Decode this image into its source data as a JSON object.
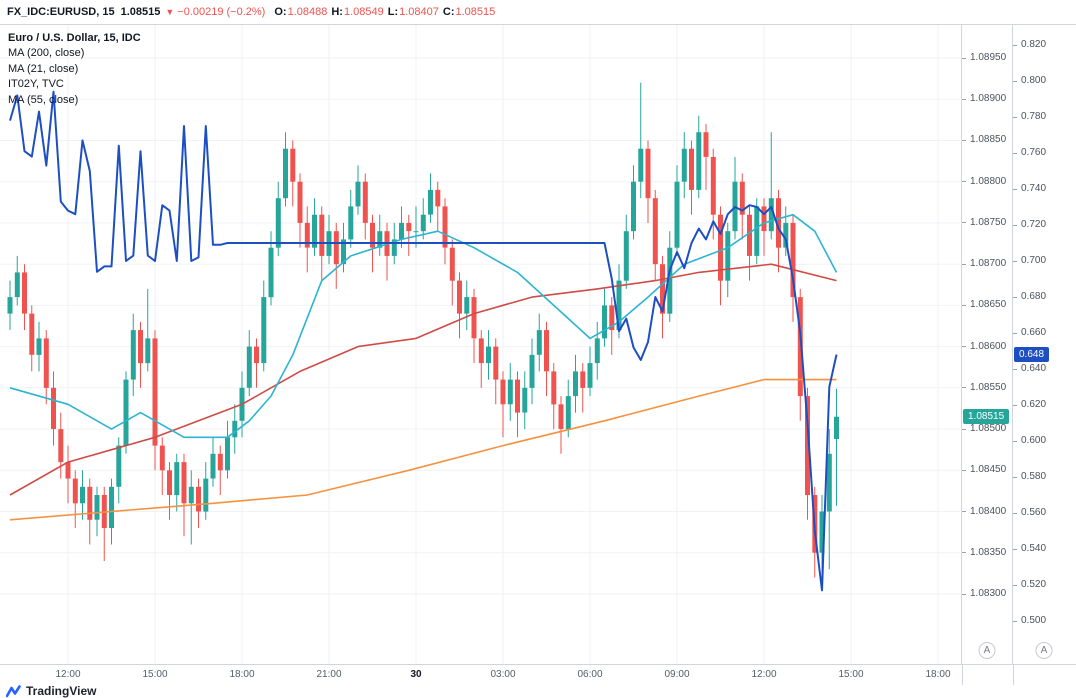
{
  "header": {
    "symbol": "FX_IDC:EURUSD, 15",
    "last": "1.08515",
    "direction": "▼",
    "change": "−0.00219 (−0.2%)",
    "o_label": "O:",
    "o": "1.08488",
    "h_label": "H:",
    "h": "1.08549",
    "l_label": "L:",
    "l": "1.08407",
    "c_label": "C:",
    "c": "1.08515"
  },
  "legend": {
    "main": "Euro / U.S. Dollar, 15, IDC",
    "ma200": "MA (200, close)",
    "ma21": "MA (21, close)",
    "it02y": "IT02Y, TVC",
    "ma55": "MA (55, close)"
  },
  "price_axis": {
    "labels": [
      "1.08950",
      "1.08900",
      "1.08850",
      "1.08800",
      "1.08750",
      "1.08700",
      "1.08650",
      "1.08600",
      "1.08550",
      "1.08500",
      "1.08450",
      "1.08400",
      "1.08350",
      "1.08300"
    ],
    "badge": "1.08515",
    "auto_label": "A"
  },
  "yield_axis": {
    "labels": [
      "0.820",
      "0.800",
      "0.780",
      "0.760",
      "0.740",
      "0.720",
      "0.700",
      "0.680",
      "0.660",
      "0.640",
      "0.620",
      "0.600",
      "0.580",
      "0.560",
      "0.540",
      "0.520",
      "0.500"
    ],
    "badge": "0.648",
    "auto_label": "A"
  },
  "time_axis": {
    "labels": [
      {
        "text": "12:00",
        "idx": 8,
        "bold": false
      },
      {
        "text": "15:00",
        "idx": 20,
        "bold": false
      },
      {
        "text": "18:00",
        "idx": 32,
        "bold": false
      },
      {
        "text": "21:00",
        "idx": 44,
        "bold": false
      },
      {
        "text": "30",
        "idx": 56,
        "bold": true
      },
      {
        "text": "03:00",
        "idx": 68,
        "bold": false
      },
      {
        "text": "06:00",
        "idx": 80,
        "bold": false
      },
      {
        "text": "09:00",
        "idx": 92,
        "bold": false
      },
      {
        "text": "12:00",
        "idx": 104,
        "bold": false
      },
      {
        "text": "15:00",
        "idx": 116,
        "bold": false
      },
      {
        "text": "18:00",
        "idx": 128,
        "bold": false
      }
    ]
  },
  "footer": {
    "brand": "TradingView"
  },
  "colors": {
    "up": "#26a69a",
    "down": "#ef5350",
    "grid": "#f0f2f7",
    "it02y": "#1e4fc2",
    "ma21": "#2cb5d0",
    "ma55": "#cf4b45",
    "ma200": "#f5923e",
    "price_badge": "#26a69a",
    "yield_badge": "#1e4fc2",
    "logo_blue": "#2962ff"
  },
  "chart_data": {
    "type": "candlestick",
    "title": "Euro / U.S. Dollar, 15, IDC with IT02Y yield overlay",
    "interval": "15",
    "price_axis_range": [
      1.083,
      1.0895
    ],
    "yield_axis_range": [
      0.5,
      0.82
    ],
    "last_price": 1.08515,
    "last_yield": 0.648,
    "candles": [
      [
        1.0864,
        1.0868,
        1.0862,
        1.0866
      ],
      [
        1.0866,
        1.0871,
        1.0865,
        1.0869
      ],
      [
        1.0869,
        1.087,
        1.0862,
        1.0864
      ],
      [
        1.0864,
        1.0865,
        1.0857,
        1.0859
      ],
      [
        1.0859,
        1.0863,
        1.0857,
        1.0861
      ],
      [
        1.0861,
        1.0862,
        1.0853,
        1.0855
      ],
      [
        1.0855,
        1.0857,
        1.0848,
        1.085
      ],
      [
        1.085,
        1.0852,
        1.0844,
        1.0846
      ],
      [
        1.0846,
        1.0848,
        1.0841,
        1.0844
      ],
      [
        1.0844,
        1.0845,
        1.0838,
        1.0841
      ],
      [
        1.0841,
        1.0845,
        1.0839,
        1.0843
      ],
      [
        1.0843,
        1.0844,
        1.0836,
        1.0839
      ],
      [
        1.0839,
        1.0843,
        1.0837,
        1.0842
      ],
      [
        1.0842,
        1.0843,
        1.0834,
        1.0838
      ],
      [
        1.0838,
        1.0844,
        1.0836,
        1.0843
      ],
      [
        1.0843,
        1.0849,
        1.0841,
        1.0848
      ],
      [
        1.0848,
        1.0857,
        1.0847,
        1.0856
      ],
      [
        1.0856,
        1.0864,
        1.0854,
        1.0862
      ],
      [
        1.0862,
        1.0863,
        1.0855,
        1.0858
      ],
      [
        1.0858,
        1.0867,
        1.0857,
        1.0861
      ],
      [
        1.0861,
        1.0862,
        1.0845,
        1.0848
      ],
      [
        1.0848,
        1.0849,
        1.0842,
        1.0845
      ],
      [
        1.0845,
        1.0846,
        1.0839,
        1.0842
      ],
      [
        1.0842,
        1.0847,
        1.084,
        1.0846
      ],
      [
        1.0846,
        1.0847,
        1.0837,
        1.0841
      ],
      [
        1.0841,
        1.0845,
        1.0836,
        1.0843
      ],
      [
        1.0843,
        1.0844,
        1.0838,
        1.084
      ],
      [
        1.084,
        1.0846,
        1.0839,
        1.0844
      ],
      [
        1.0844,
        1.0849,
        1.0843,
        1.0847
      ],
      [
        1.0847,
        1.0848,
        1.0842,
        1.0845
      ],
      [
        1.0845,
        1.0851,
        1.0844,
        1.0849
      ],
      [
        1.0849,
        1.0853,
        1.0847,
        1.0851
      ],
      [
        1.0851,
        1.0857,
        1.0849,
        1.0855
      ],
      [
        1.0855,
        1.0862,
        1.0854,
        1.086
      ],
      [
        1.086,
        1.0861,
        1.0855,
        1.0858
      ],
      [
        1.0858,
        1.0868,
        1.0857,
        1.0866
      ],
      [
        1.0866,
        1.0874,
        1.0865,
        1.0872
      ],
      [
        1.0872,
        1.088,
        1.0871,
        1.0878
      ],
      [
        1.0878,
        1.0886,
        1.0877,
        1.0884
      ],
      [
        1.0884,
        1.0885,
        1.0877,
        1.088
      ],
      [
        1.088,
        1.0881,
        1.0872,
        1.0875
      ],
      [
        1.0875,
        1.0877,
        1.0869,
        1.0872
      ],
      [
        1.0872,
        1.0878,
        1.0871,
        1.0876
      ],
      [
        1.0876,
        1.0877,
        1.0868,
        1.0871
      ],
      [
        1.0871,
        1.0876,
        1.087,
        1.0874
      ],
      [
        1.0874,
        1.0875,
        1.0867,
        1.087
      ],
      [
        1.087,
        1.0875,
        1.0869,
        1.0873
      ],
      [
        1.0873,
        1.0879,
        1.0872,
        1.0877
      ],
      [
        1.0877,
        1.0882,
        1.0876,
        1.088
      ],
      [
        1.088,
        1.0881,
        1.0873,
        1.0875
      ],
      [
        1.0875,
        1.0876,
        1.0869,
        1.0872
      ],
      [
        1.0872,
        1.0876,
        1.0871,
        1.0874
      ],
      [
        1.0874,
        1.0875,
        1.0868,
        1.0871
      ],
      [
        1.0871,
        1.0875,
        1.087,
        1.0873
      ],
      [
        1.0873,
        1.0877,
        1.0872,
        1.0875
      ],
      [
        1.0875,
        1.0876,
        1.0871,
        1.0874
      ],
      [
        1.0874,
        1.0877,
        1.0872,
        1.0874
      ],
      [
        1.0874,
        1.0878,
        1.0873,
        1.0876
      ],
      [
        1.0876,
        1.0881,
        1.0875,
        1.0879
      ],
      [
        1.0879,
        1.088,
        1.0874,
        1.0877
      ],
      [
        1.0877,
        1.0878,
        1.087,
        1.0872
      ],
      [
        1.0872,
        1.0873,
        1.0865,
        1.0868
      ],
      [
        1.0868,
        1.0869,
        1.0861,
        1.0864
      ],
      [
        1.0864,
        1.0868,
        1.0862,
        1.0866
      ],
      [
        1.0866,
        1.0867,
        1.0858,
        1.0861
      ],
      [
        1.0861,
        1.0862,
        1.0855,
        1.0858
      ],
      [
        1.0858,
        1.0862,
        1.0856,
        1.086
      ],
      [
        1.086,
        1.0861,
        1.0853,
        1.0856
      ],
      [
        1.0856,
        1.0857,
        1.0849,
        1.0853
      ],
      [
        1.0853,
        1.0858,
        1.0851,
        1.0856
      ],
      [
        1.0856,
        1.0857,
        1.0849,
        1.0852
      ],
      [
        1.0852,
        1.0857,
        1.085,
        1.0855
      ],
      [
        1.0855,
        1.0861,
        1.0853,
        1.0859
      ],
      [
        1.0859,
        1.0864,
        1.0857,
        1.0862
      ],
      [
        1.0862,
        1.0863,
        1.0854,
        1.0857
      ],
      [
        1.0857,
        1.0858,
        1.085,
        1.0853
      ],
      [
        1.0853,
        1.0854,
        1.0847,
        1.085
      ],
      [
        1.085,
        1.0856,
        1.0849,
        1.0854
      ],
      [
        1.0854,
        1.0859,
        1.0852,
        1.0857
      ],
      [
        1.0857,
        1.0858,
        1.0852,
        1.0855
      ],
      [
        1.0855,
        1.086,
        1.0854,
        1.0858
      ],
      [
        1.0858,
        1.0863,
        1.0856,
        1.0861
      ],
      [
        1.0861,
        1.0867,
        1.086,
        1.0865
      ],
      [
        1.0865,
        1.0866,
        1.0859,
        1.0862
      ],
      [
        1.0862,
        1.087,
        1.0861,
        1.0868
      ],
      [
        1.0868,
        1.0876,
        1.0867,
        1.0874
      ],
      [
        1.0874,
        1.0882,
        1.0873,
        1.088
      ],
      [
        1.088,
        1.0892,
        1.0878,
        1.0884
      ],
      [
        1.0884,
        1.0885,
        1.0875,
        1.0878
      ],
      [
        1.0878,
        1.0879,
        1.0868,
        1.087
      ],
      [
        1.087,
        1.0871,
        1.0861,
        1.0864
      ],
      [
        1.0864,
        1.0874,
        1.0863,
        1.0872
      ],
      [
        1.0872,
        1.0882,
        1.0871,
        1.088
      ],
      [
        1.088,
        1.0886,
        1.0878,
        1.0884
      ],
      [
        1.0884,
        1.0885,
        1.0876,
        1.0879
      ],
      [
        1.0879,
        1.0888,
        1.0878,
        1.0886
      ],
      [
        1.0886,
        1.0887,
        1.0879,
        1.0883
      ],
      [
        1.0883,
        1.0884,
        1.0873,
        1.0876
      ],
      [
        1.0876,
        1.0877,
        1.0865,
        1.0868
      ],
      [
        1.0868,
        1.0875,
        1.0866,
        1.0874
      ],
      [
        1.0874,
        1.0883,
        1.0873,
        1.088
      ],
      [
        1.088,
        1.0881,
        1.0873,
        1.0876
      ],
      [
        1.0876,
        1.0877,
        1.0868,
        1.0871
      ],
      [
        1.0871,
        1.0878,
        1.087,
        1.0877
      ],
      [
        1.0877,
        1.0878,
        1.0871,
        1.0874
      ],
      [
        1.0874,
        1.0886,
        1.0873,
        1.0878
      ],
      [
        1.0878,
        1.0879,
        1.0869,
        1.0872
      ],
      [
        1.0872,
        1.0877,
        1.0871,
        1.0875
      ],
      [
        1.0875,
        1.0876,
        1.0863,
        1.0866
      ],
      [
        1.0866,
        1.0867,
        1.0851,
        1.0854
      ],
      [
        1.0854,
        1.0855,
        1.0839,
        1.0842
      ],
      [
        1.0842,
        1.0843,
        1.0832,
        1.0835
      ],
      [
        1.0835,
        1.0842,
        1.0832,
        1.084
      ],
      [
        1.084,
        1.085,
        1.0833,
        1.0847
      ],
      [
        1.08488,
        1.08549,
        1.08407,
        1.08515
      ]
    ],
    "overlays": {
      "it02y": {
        "name": "IT02Y, TVC",
        "axis": "yield",
        "values": [
          0.778,
          0.792,
          0.761,
          0.758,
          0.783,
          0.753,
          0.794,
          0.733,
          0.728,
          0.726,
          0.767,
          0.75,
          0.694,
          0.697,
          0.697,
          0.764,
          0.7,
          0.703,
          0.761,
          0.703,
          0.7,
          0.731,
          0.728,
          0.7,
          0.775,
          0.7,
          0.702,
          0.775,
          0.709,
          0.709,
          0.71,
          0.71,
          0.71,
          0.71,
          0.71,
          0.71,
          0.71,
          0.71,
          0.71,
          0.71,
          0.71,
          0.71,
          0.71,
          0.71,
          0.71,
          0.71,
          0.71,
          0.71,
          0.71,
          0.71,
          0.71,
          0.71,
          0.71,
          0.71,
          0.71,
          0.71,
          0.71,
          0.71,
          0.71,
          0.71,
          0.71,
          0.71,
          0.71,
          0.71,
          0.71,
          0.71,
          0.71,
          0.71,
          0.71,
          0.71,
          0.71,
          0.71,
          0.71,
          0.71,
          0.71,
          0.71,
          0.71,
          0.71,
          0.71,
          0.71,
          0.71,
          0.71,
          0.71,
          0.69,
          0.661,
          0.668,
          0.652,
          0.645,
          0.655,
          0.68,
          0.672,
          0.695,
          0.705,
          0.696,
          0.71,
          0.718,
          0.712,
          0.722,
          0.715,
          0.726,
          0.73,
          0.728,
          0.731,
          0.73,
          0.726,
          0.73,
          0.718,
          0.712,
          0.69,
          0.66,
          0.61,
          0.55,
          0.517,
          0.63,
          0.648
        ]
      },
      "ma21": {
        "name": "MA (21, close)",
        "axis": "price",
        "points": [
          [
            0,
            1.0855
          ],
          [
            8,
            1.0853
          ],
          [
            14,
            1.085
          ],
          [
            18,
            1.0852
          ],
          [
            24,
            1.0849
          ],
          [
            30,
            1.0849
          ],
          [
            33,
            1.0851
          ],
          [
            36,
            1.0854
          ],
          [
            39,
            1.0859
          ],
          [
            43,
            1.0868
          ],
          [
            47,
            1.0871
          ],
          [
            54,
            1.0873
          ],
          [
            59,
            1.0874
          ],
          [
            64,
            1.0872
          ],
          [
            70,
            1.0869
          ],
          [
            75,
            1.0865
          ],
          [
            80,
            1.0861
          ],
          [
            84,
            1.0863
          ],
          [
            88,
            1.0866
          ],
          [
            93,
            1.087
          ],
          [
            99,
            1.0872
          ],
          [
            104,
            1.0875
          ],
          [
            108,
            1.0876
          ],
          [
            111,
            1.0874
          ],
          [
            114,
            1.0869
          ]
        ]
      },
      "ma55": {
        "name": "MA (55, close)",
        "axis": "price",
        "points": [
          [
            0,
            1.0842
          ],
          [
            8,
            1.0846
          ],
          [
            20,
            1.0849
          ],
          [
            32,
            1.0853
          ],
          [
            40,
            1.0857
          ],
          [
            48,
            1.086
          ],
          [
            56,
            1.0861
          ],
          [
            64,
            1.0864
          ],
          [
            72,
            1.0866
          ],
          [
            81,
            1.0867
          ],
          [
            89,
            1.0868
          ],
          [
            95,
            1.0869
          ],
          [
            105,
            1.087
          ],
          [
            114,
            1.0868
          ]
        ]
      },
      "ma200": {
        "name": "MA (200, close)",
        "axis": "price",
        "points": [
          [
            0,
            1.0839
          ],
          [
            14,
            1.084
          ],
          [
            28,
            1.0841
          ],
          [
            41,
            1.0842
          ],
          [
            55,
            1.0845
          ],
          [
            68,
            1.0848
          ],
          [
            82,
            1.0851
          ],
          [
            95,
            1.0854
          ],
          [
            104,
            1.0856
          ],
          [
            114,
            1.0856
          ]
        ]
      }
    }
  }
}
